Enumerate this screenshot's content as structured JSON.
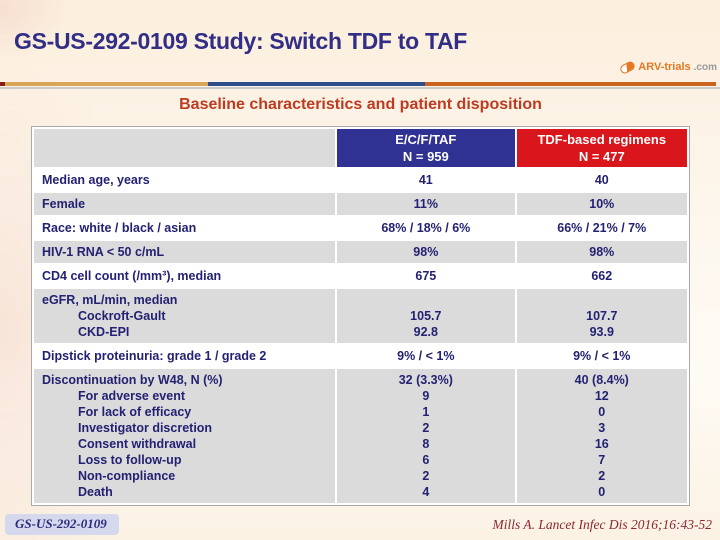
{
  "slide": {
    "title": "GS-US-292-0109 Study: Switch TDF to TAF",
    "subtitle": "Baseline characteristics and patient disposition",
    "logo": {
      "name": "ARV-trials",
      "tld": ".com"
    },
    "footer_left": "GS-US-292-0109",
    "footer_right": "Mills A. Lancet Infec Dis 2016;16:43-52"
  },
  "colors": {
    "title-color": "#322E86",
    "subtitle-color": "#BE3A20",
    "header-blue": "#2F3193",
    "header-red": "#D8161C",
    "table-text": "#232272",
    "row-gray": "#DBDBDB",
    "rule-red": "#8B1A1A",
    "rule-tan": "#D9A556",
    "rule-blue": "#2F4E8C",
    "rule-orange": "#C9641F",
    "cite-color": "#8C2633"
  },
  "table": {
    "header": {
      "col1_line1": "E/C/F/TAF",
      "col1_line2": "N = 959",
      "col2_line1": "TDF-based regimens",
      "col2_line2": "N = 477"
    },
    "rows": [
      {
        "shade": "white",
        "lines": [
          {
            "label": "Median age, years",
            "indent": 0,
            "v1": "41",
            "v2": "40"
          }
        ]
      },
      {
        "shade": "gray",
        "lines": [
          {
            "label": "Female",
            "indent": 0,
            "v1": "11%",
            "v2": "10%"
          }
        ]
      },
      {
        "shade": "white",
        "lines": [
          {
            "label": "Race: white / black / asian",
            "indent": 0,
            "v1": "68% / 18% / 6%",
            "v2": "66% / 21% / 7%"
          }
        ]
      },
      {
        "shade": "gray",
        "lines": [
          {
            "label": "HIV-1 RNA < 50 c/mL",
            "indent": 0,
            "v1": "98%",
            "v2": "98%"
          }
        ]
      },
      {
        "shade": "white",
        "lines": [
          {
            "label": "CD4 cell count (/mm³), median",
            "indent": 0,
            "v1": "675",
            "v2": "662"
          }
        ]
      },
      {
        "shade": "gray",
        "lines": [
          {
            "label": "eGFR, mL/min, median",
            "indent": 0,
            "v1": "",
            "v2": ""
          },
          {
            "label": "Cockroft-Gault",
            "indent": 1,
            "v1": "105.7",
            "v2": "107.7"
          },
          {
            "label": "CKD-EPI",
            "indent": 1,
            "v1": "92.8",
            "v2": "93.9"
          }
        ]
      },
      {
        "shade": "white",
        "lines": [
          {
            "label": "Dipstick proteinuria: grade 1 / grade 2",
            "indent": 0,
            "v1": "9% / < 1%",
            "v2": "9% / < 1%"
          }
        ]
      },
      {
        "shade": "gray",
        "lines": [
          {
            "label": "Discontinuation by W48, N (%)",
            "indent": 0,
            "v1": "32 (3.3%)",
            "v2": "40 (8.4%)"
          },
          {
            "label": "For adverse event",
            "indent": 1,
            "v1": "9",
            "v2": "12"
          },
          {
            "label": "For lack of efficacy",
            "indent": 1,
            "v1": "1",
            "v2": "0"
          },
          {
            "label": "Investigator discretion",
            "indent": 1,
            "v1": "2",
            "v2": "3"
          },
          {
            "label": "Consent withdrawal",
            "indent": 1,
            "v1": "8",
            "v2": "16"
          },
          {
            "label": "Loss to follow-up",
            "indent": 1,
            "v1": "6",
            "v2": "7"
          },
          {
            "label": "Non-compliance",
            "indent": 1,
            "v1": "2",
            "v2": "2"
          },
          {
            "label": "Death",
            "indent": 1,
            "v1": "4",
            "v2": "0"
          }
        ]
      }
    ]
  }
}
